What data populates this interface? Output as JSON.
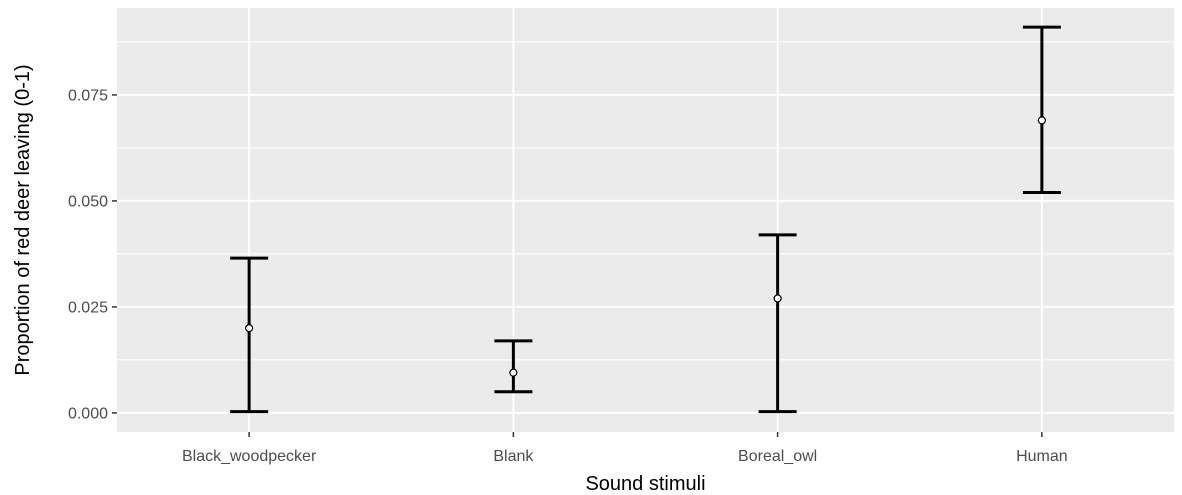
{
  "chart_data": {
    "type": "errorbar",
    "title": "",
    "xlabel": "Sound stimuli",
    "ylabel": "Proportion of red deer leaving (0-1)",
    "categories": [
      "Black_woodpecker",
      "Blank",
      "Boreal_owl",
      "Human"
    ],
    "values": [
      0.02,
      0.0095,
      0.027,
      0.069
    ],
    "lower": [
      0.0003,
      0.005,
      0.0003,
      0.052
    ],
    "upper": [
      0.0365,
      0.017,
      0.042,
      0.091
    ],
    "ylim": [
      -0.0045,
      0.0955
    ],
    "yticks": [
      0.0,
      0.025,
      0.05,
      0.075
    ],
    "ytick_labels": [
      "0.000",
      "0.025",
      "0.050",
      "0.075"
    ],
    "grid": true,
    "legend": "none",
    "colors": {
      "panel_background": "#ebebeb",
      "grid": "#ffffff",
      "errorbar": "#000000",
      "point_fill": "#ffffff",
      "tick_text": "#4d4d4d",
      "axis_title": "#000000"
    }
  }
}
